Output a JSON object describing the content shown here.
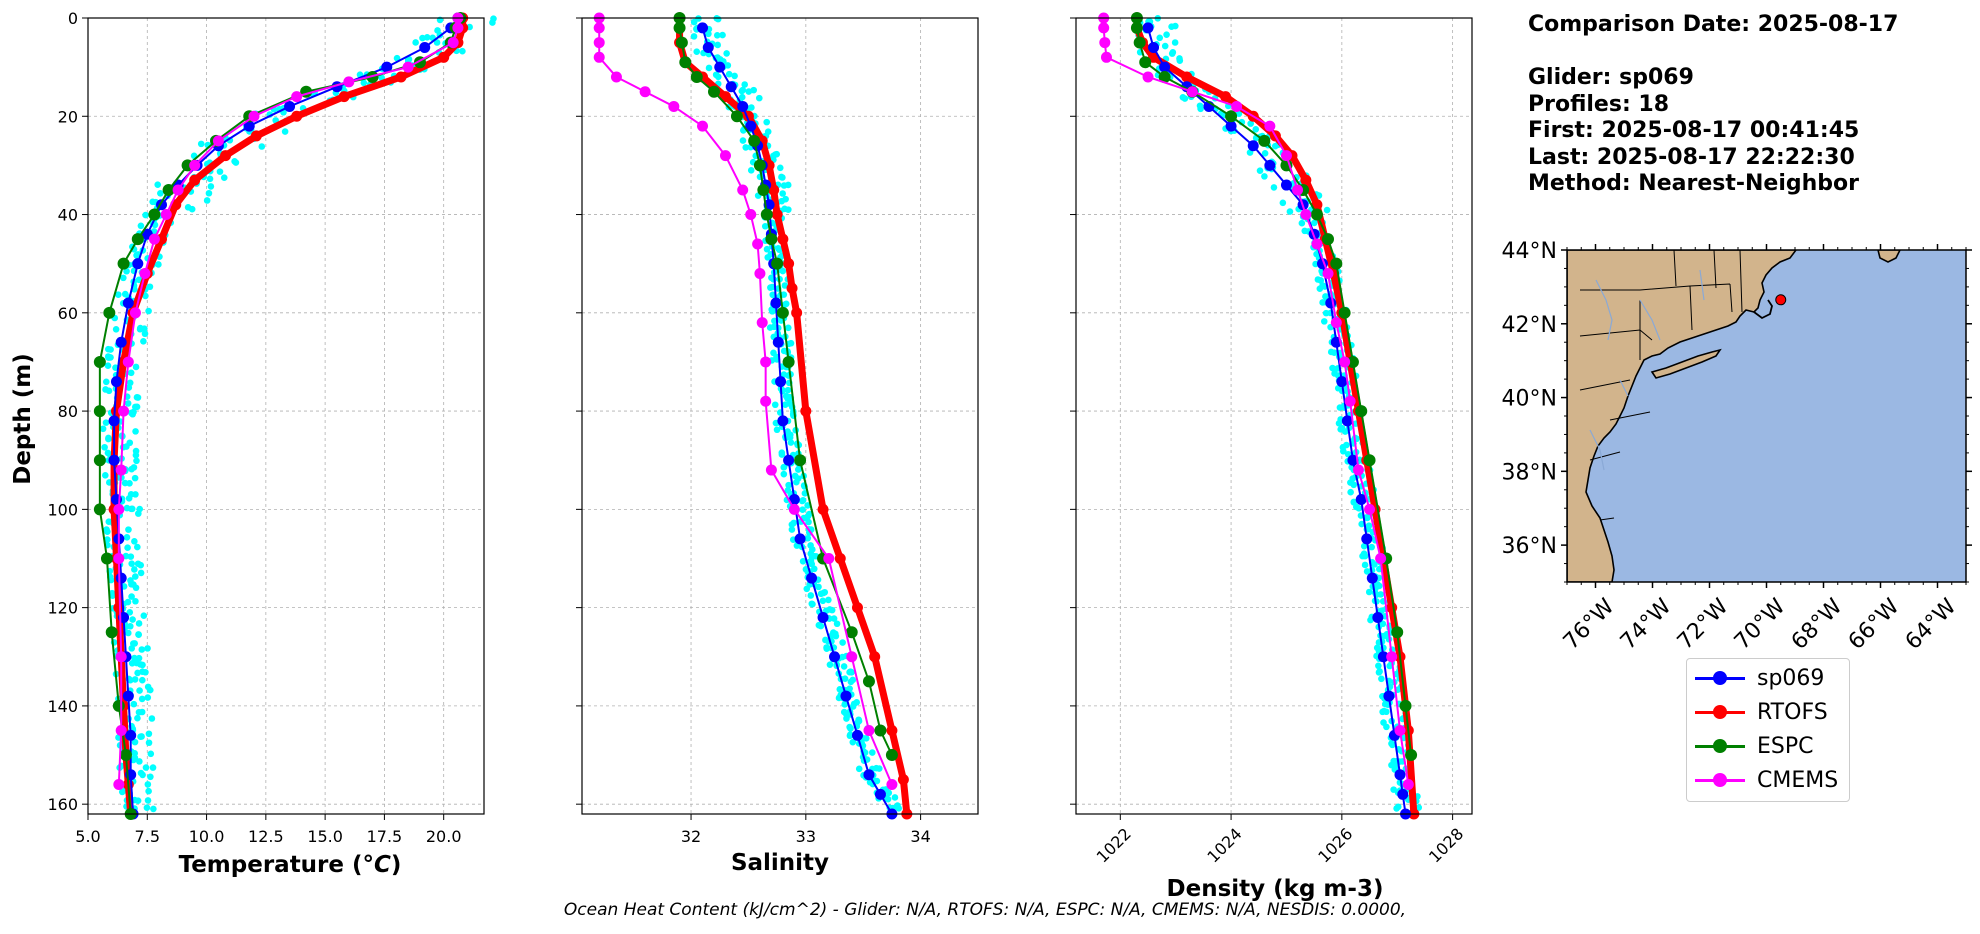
{
  "info": {
    "comparison": "Comparison Date: 2025-08-17",
    "glider": "Glider: sp069",
    "profiles": "Profiles: 18",
    "first": "First: 2025-08-17 00:41:45",
    "last": "Last: 2025-08-17 22:22:30",
    "method": "Method: Nearest-Neighbor"
  },
  "footer": "Ocean Heat Content (kJ/cm^2) - Glider: N/A,  RTOFS: N/A,  ESPC: N/A,  CMEMS: N/A,  NESDIS: 0.0000,",
  "colors": {
    "glider": "#0000ff",
    "rtofs": "#ff0000",
    "espc": "#008000",
    "cmems": "#ff00ff",
    "profiles": "#00ffff",
    "land": "#d2b48c",
    "ocean": "#9bb8e3"
  },
  "legend": [
    {
      "label": "sp069",
      "color": "#0000ff"
    },
    {
      "label": "RTOFS",
      "color": "#ff0000"
    },
    {
      "label": "ESPC",
      "color": "#008000"
    },
    {
      "label": "CMEMS",
      "color": "#ff00ff"
    }
  ],
  "chart_data": [
    {
      "type": "line",
      "xlabel": "Temperature (°C)",
      "ylabel": "Depth (m)",
      "xlim": [
        5.0,
        21.7
      ],
      "ylim": [
        162,
        0
      ],
      "xticks": [
        "5.0",
        "7.5",
        "10.0",
        "12.5",
        "15.0",
        "17.5",
        "20.0"
      ],
      "yticks": [
        "0",
        "20",
        "40",
        "60",
        "80",
        "100",
        "120",
        "140",
        "160"
      ],
      "grid": true,
      "series": [
        {
          "name": "sp069",
          "x": [
            20.6,
            20.3,
            19.2,
            17.6,
            15.5,
            13.5,
            11.8,
            10.5,
            9.6,
            8.8,
            8.1,
            7.5,
            7.1,
            6.7,
            6.4,
            6.2,
            6.1,
            6.1,
            6.2,
            6.3,
            6.4,
            6.5,
            6.6,
            6.7,
            6.8,
            6.8,
            6.9
          ],
          "y": [
            0,
            2,
            6,
            10,
            14,
            18,
            22,
            26,
            30,
            34,
            38,
            44,
            50,
            58,
            66,
            74,
            82,
            90,
            98,
            106,
            114,
            122,
            130,
            138,
            146,
            154,
            162
          ]
        },
        {
          "name": "RTOFS",
          "x": [
            20.8,
            20.8,
            20.6,
            20.0,
            18.2,
            15.8,
            13.8,
            12.1,
            10.8,
            9.5,
            8.7,
            8.1,
            7.5,
            6.9,
            6.5,
            6.2,
            6.1,
            6.1,
            6.2,
            6.3,
            6.4,
            6.5,
            6.6,
            6.7,
            6.8
          ],
          "y": [
            0,
            2,
            5,
            8,
            12,
            16,
            20,
            24,
            28,
            33,
            38,
            45,
            52,
            60,
            70,
            80,
            90,
            100,
            110,
            120,
            130,
            140,
            150,
            156,
            162
          ]
        },
        {
          "name": "ESPC",
          "x": [
            20.7,
            20.5,
            20.3,
            19.0,
            17.0,
            14.2,
            11.8,
            10.4,
            9.2,
            8.4,
            7.8,
            7.1,
            6.5,
            5.9,
            5.5,
            5.5,
            5.5,
            5.5,
            5.8,
            6.0,
            6.3,
            6.6,
            6.8
          ],
          "y": [
            0,
            2,
            5,
            9,
            12,
            15,
            20,
            25,
            30,
            35,
            40,
            45,
            50,
            60,
            70,
            80,
            90,
            100,
            110,
            125,
            140,
            150,
            162
          ]
        },
        {
          "name": "CMEMS",
          "x": [
            20.6,
            20.6,
            20.4,
            18.5,
            16.0,
            13.8,
            12.0,
            10.5,
            9.5,
            8.8,
            8.3,
            7.8,
            7.4,
            7.0,
            6.7,
            6.5,
            6.4,
            6.3,
            6.3,
            6.4,
            6.4,
            6.3
          ],
          "y": [
            0,
            2,
            5,
            10,
            13,
            16,
            20,
            25,
            30,
            35,
            40,
            45,
            52,
            60,
            70,
            80,
            92,
            100,
            110,
            130,
            145,
            156
          ]
        }
      ]
    },
    {
      "type": "line",
      "xlabel": "Salinity",
      "xlim": [
        31.05,
        34.5
      ],
      "ylim": [
        162,
        0
      ],
      "xticks": [
        "32",
        "33",
        "34"
      ],
      "yticks": [
        "0",
        "20",
        "40",
        "60",
        "80",
        "100",
        "120",
        "140",
        "160"
      ],
      "grid": true,
      "series": [
        {
          "name": "sp069",
          "x": [
            32.1,
            32.15,
            32.25,
            32.35,
            32.45,
            32.52,
            32.58,
            32.62,
            32.65,
            32.68,
            32.7,
            32.72,
            32.74,
            32.76,
            32.78,
            32.8,
            32.85,
            32.9,
            32.95,
            33.05,
            33.15,
            33.25,
            33.35,
            33.45,
            33.55,
            33.65,
            33.75
          ],
          "y": [
            2,
            6,
            10,
            14,
            18,
            22,
            26,
            30,
            34,
            38,
            44,
            50,
            58,
            66,
            74,
            82,
            90,
            98,
            106,
            114,
            122,
            130,
            138,
            146,
            154,
            158,
            162
          ]
        },
        {
          "name": "RTOFS",
          "x": [
            31.9,
            31.9,
            31.95,
            32.1,
            32.3,
            32.5,
            32.62,
            32.68,
            32.72,
            32.75,
            32.8,
            32.85,
            32.88,
            32.92,
            33.0,
            33.15,
            33.3,
            33.45,
            33.6,
            33.75,
            33.85,
            33.88
          ],
          "y": [
            0,
            5,
            9,
            12,
            16,
            20,
            25,
            30,
            35,
            40,
            45,
            50,
            55,
            60,
            80,
            100,
            110,
            120,
            130,
            145,
            155,
            162
          ]
        },
        {
          "name": "ESPC",
          "x": [
            31.9,
            31.9,
            31.92,
            31.95,
            32.05,
            32.2,
            32.4,
            32.55,
            32.6,
            32.63,
            32.66,
            32.7,
            32.75,
            32.8,
            32.85,
            32.95,
            33.15,
            33.4,
            33.55,
            33.65,
            33.75
          ],
          "y": [
            0,
            2,
            5,
            9,
            12,
            15,
            20,
            25,
            30,
            35,
            40,
            45,
            50,
            60,
            70,
            90,
            110,
            125,
            135,
            145,
            150
          ]
        },
        {
          "name": "CMEMS",
          "x": [
            31.2,
            31.2,
            31.2,
            31.2,
            31.35,
            31.6,
            31.85,
            32.1,
            32.3,
            32.45,
            32.52,
            32.58,
            32.6,
            32.62,
            32.65,
            32.65,
            32.7,
            32.9,
            33.2,
            33.4,
            33.55,
            33.75
          ],
          "y": [
            0,
            2,
            5,
            8,
            12,
            15,
            18,
            22,
            28,
            35,
            40,
            46,
            52,
            62,
            70,
            78,
            92,
            100,
            110,
            130,
            145,
            156
          ]
        }
      ]
    },
    {
      "type": "line",
      "xlabel": "Density (kg m-3)",
      "xlim": [
        1021.2,
        1028.35
      ],
      "ylim": [
        162,
        0
      ],
      "xticks": [
        "1022",
        "1024",
        "1026",
        "1028"
      ],
      "yticks": [
        "0",
        "20",
        "40",
        "60",
        "80",
        "100",
        "120",
        "140",
        "160"
      ],
      "grid": true,
      "series": [
        {
          "name": "sp069",
          "x": [
            1022.5,
            1022.6,
            1022.8,
            1023.2,
            1023.6,
            1024.0,
            1024.4,
            1024.7,
            1025.0,
            1025.3,
            1025.5,
            1025.65,
            1025.8,
            1025.9,
            1026.0,
            1026.1,
            1026.2,
            1026.35,
            1026.45,
            1026.55,
            1026.65,
            1026.75,
            1026.85,
            1026.95,
            1027.05,
            1027.1,
            1027.15
          ],
          "y": [
            2,
            6,
            10,
            14,
            18,
            22,
            26,
            30,
            34,
            38,
            44,
            50,
            58,
            66,
            74,
            82,
            90,
            98,
            106,
            114,
            122,
            130,
            138,
            146,
            154,
            158,
            162
          ]
        },
        {
          "name": "RTOFS",
          "x": [
            1022.3,
            1022.3,
            1022.4,
            1022.6,
            1023.2,
            1023.9,
            1024.4,
            1024.8,
            1025.1,
            1025.35,
            1025.55,
            1025.7,
            1025.85,
            1026.0,
            1026.15,
            1026.3,
            1026.45,
            1026.6,
            1026.75,
            1026.9,
            1027.05,
            1027.2,
            1027.3
          ],
          "y": [
            0,
            2,
            5,
            8,
            12,
            16,
            20,
            24,
            28,
            33,
            38,
            45,
            52,
            60,
            70,
            80,
            90,
            100,
            110,
            120,
            130,
            145,
            162
          ]
        },
        {
          "name": "ESPC",
          "x": [
            1022.3,
            1022.3,
            1022.35,
            1022.45,
            1022.8,
            1023.3,
            1024.0,
            1024.6,
            1025.0,
            1025.3,
            1025.55,
            1025.75,
            1025.9,
            1026.05,
            1026.2,
            1026.35,
            1026.5,
            1026.8,
            1027.0,
            1027.15,
            1027.25
          ],
          "y": [
            0,
            2,
            5,
            9,
            12,
            15,
            20,
            25,
            30,
            35,
            40,
            45,
            50,
            60,
            70,
            80,
            90,
            110,
            125,
            140,
            150
          ]
        },
        {
          "name": "CMEMS",
          "x": [
            1021.7,
            1021.7,
            1021.72,
            1021.75,
            1022.5,
            1023.3,
            1024.1,
            1024.7,
            1025.0,
            1025.2,
            1025.35,
            1025.55,
            1025.75,
            1025.9,
            1026.05,
            1026.15,
            1026.3,
            1026.5,
            1026.7,
            1026.9,
            1027.05,
            1027.2
          ],
          "y": [
            0,
            2,
            5,
            8,
            12,
            15,
            18,
            22,
            28,
            35,
            40,
            46,
            52,
            62,
            70,
            78,
            92,
            100,
            110,
            130,
            145,
            156
          ]
        }
      ]
    },
    {
      "type": "map",
      "lat_range": [
        35,
        44
      ],
      "lon_range": [
        -77,
        -63
      ],
      "lat_ticks": [
        "36°N",
        "38°N",
        "40°N",
        "42°N",
        "44°N"
      ],
      "lon_ticks": [
        "76°W",
        "74°W",
        "72°W",
        "70°W",
        "68°W",
        "66°W",
        "64°W"
      ],
      "marker": {
        "lat": 42.65,
        "lon": -69.5,
        "color": "#ff0000"
      }
    }
  ]
}
